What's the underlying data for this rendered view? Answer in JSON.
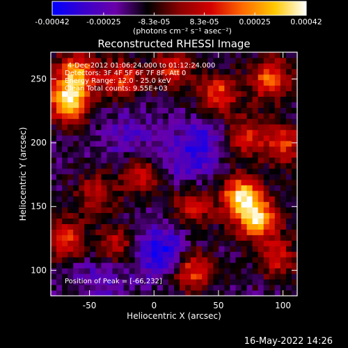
{
  "colorbar": {
    "tick_labels": [
      "-0.00042",
      "-0.00025",
      "-8.3e-05",
      "8.3e-05",
      "0.00025",
      "0.00042"
    ],
    "tick_values": [
      -0.00042,
      -0.00025,
      -8.3e-05,
      8.3e-05,
      0.00025,
      0.00042
    ],
    "range": [
      -0.00042,
      0.00042
    ],
    "units_label": "(photons cm⁻² s⁻¹ asec⁻²)",
    "colormap": [
      "#0000ff",
      "#3a00cc",
      "#6a00a8",
      "#000000",
      "#8a0000",
      "#d40000",
      "#ff6a00",
      "#ffc800",
      "#ffffff"
    ]
  },
  "chart_data": {
    "type": "heatmap",
    "title": "Reconstructed RHESSI Image",
    "xlabel": "Heliocentric X (arcsec)",
    "ylabel": "Heliocentric Y (arcsec)",
    "xlim": [
      -80,
      111
    ],
    "ylim": [
      80,
      271
    ],
    "x_ticks": [
      -50,
      0,
      50,
      100
    ],
    "y_ticks": [
      100,
      150,
      200,
      250
    ],
    "annotations": [
      "4-Dec-2012 01:06:24.000 to 01:12:24.000",
      "Detectors: 3F 4F 5F 6F 7F 8F, Att 0",
      "Energy Range: 12.0 - 25.0 keV",
      "Clean     Total counts: 9.55E+03"
    ],
    "peak_label": "Position of Peak = [-66,232]",
    "peak_position": [
      -66,
      232
    ],
    "hot_regions": [
      {
        "x": -66,
        "y": 232,
        "amp": 1.0
      },
      {
        "x": -60,
        "y": 255,
        "amp": 0.75
      },
      {
        "x": -25,
        "y": 250,
        "amp": 0.55
      },
      {
        "x": 15,
        "y": 258,
        "amp": 0.5
      },
      {
        "x": 50,
        "y": 238,
        "amp": 0.6
      },
      {
        "x": 90,
        "y": 250,
        "amp": 0.65
      },
      {
        "x": 70,
        "y": 205,
        "amp": 0.5
      },
      {
        "x": 100,
        "y": 200,
        "amp": 0.55
      },
      {
        "x": 68,
        "y": 158,
        "amp": 0.9
      },
      {
        "x": 80,
        "y": 140,
        "amp": 0.85
      },
      {
        "x": 30,
        "y": 150,
        "amp": 0.45
      },
      {
        "x": -10,
        "y": 175,
        "amp": 0.45
      },
      {
        "x": -45,
        "y": 160,
        "amp": 0.4
      },
      {
        "x": -70,
        "y": 125,
        "amp": 0.55
      },
      {
        "x": -30,
        "y": 120,
        "amp": 0.45
      },
      {
        "x": 30,
        "y": 100,
        "amp": 0.6
      },
      {
        "x": 95,
        "y": 110,
        "amp": 0.45
      }
    ],
    "cold_regions": [
      {
        "x": 5,
        "y": 115,
        "amp": 1.0
      },
      {
        "x": 25,
        "y": 185,
        "amp": 0.6
      },
      {
        "x": -20,
        "y": 205,
        "amp": 0.5
      },
      {
        "x": 40,
        "y": 205,
        "amp": 0.55
      },
      {
        "x": -40,
        "y": 95,
        "amp": 0.5
      }
    ]
  },
  "footer": {
    "timestamp": "16-May-2022 14:26"
  }
}
